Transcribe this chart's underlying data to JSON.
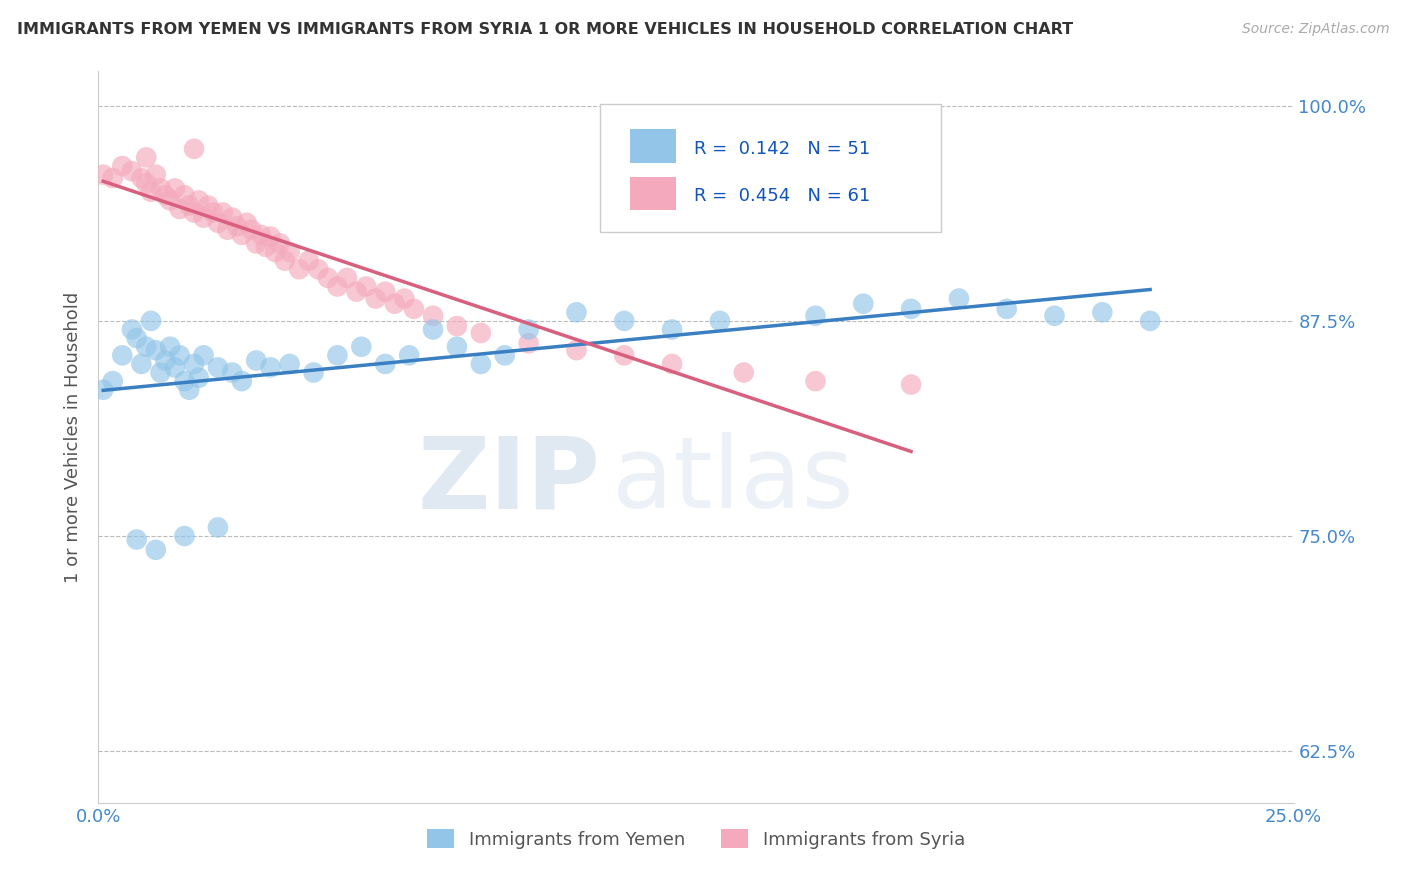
{
  "title": "IMMIGRANTS FROM YEMEN VS IMMIGRANTS FROM SYRIA 1 OR MORE VEHICLES IN HOUSEHOLD CORRELATION CHART",
  "source_text": "Source: ZipAtlas.com",
  "ylabel": "1 or more Vehicles in Household",
  "legend_label1": "Immigrants from Yemen",
  "legend_label2": "Immigrants from Syria",
  "R_yemen": 0.142,
  "N_yemen": 51,
  "R_syria": 0.454,
  "N_syria": 61,
  "xlim": [
    0.0,
    0.25
  ],
  "ylim": [
    0.595,
    1.02
  ],
  "yticks": [
    0.625,
    0.75,
    0.875,
    1.0
  ],
  "yticklabels": [
    "62.5%",
    "75.0%",
    "87.5%",
    "100.0%"
  ],
  "xticks": [
    0.0,
    0.05,
    0.1,
    0.15,
    0.2,
    0.25
  ],
  "xticklabels": [
    "0.0%",
    "",
    "",
    "",
    "",
    "25.0%"
  ],
  "color_yemen": "#92C5E8",
  "color_syria": "#F4AABC",
  "line_color_yemen": "#3A7FC1",
  "line_color_syria": "#D95F7F",
  "background_color": "#FFFFFF",
  "watermark_zip": "ZIP",
  "watermark_atlas": "atlas",
  "yemen_x": [
    0.001,
    0.003,
    0.005,
    0.007,
    0.008,
    0.009,
    0.01,
    0.011,
    0.012,
    0.013,
    0.014,
    0.015,
    0.016,
    0.017,
    0.018,
    0.019,
    0.02,
    0.021,
    0.022,
    0.025,
    0.028,
    0.03,
    0.033,
    0.036,
    0.04,
    0.045,
    0.05,
    0.055,
    0.06,
    0.065,
    0.07,
    0.075,
    0.08,
    0.085,
    0.09,
    0.1,
    0.11,
    0.12,
    0.13,
    0.15,
    0.16,
    0.17,
    0.18,
    0.19,
    0.2,
    0.21,
    0.22,
    0.008,
    0.012,
    0.018,
    0.025
  ],
  "yemen_y": [
    0.835,
    0.84,
    0.855,
    0.87,
    0.865,
    0.85,
    0.86,
    0.875,
    0.858,
    0.845,
    0.852,
    0.86,
    0.848,
    0.855,
    0.84,
    0.835,
    0.85,
    0.842,
    0.855,
    0.848,
    0.845,
    0.84,
    0.852,
    0.848,
    0.85,
    0.845,
    0.855,
    0.86,
    0.85,
    0.855,
    0.87,
    0.86,
    0.85,
    0.855,
    0.87,
    0.88,
    0.875,
    0.87,
    0.875,
    0.878,
    0.885,
    0.882,
    0.888,
    0.882,
    0.878,
    0.88,
    0.875,
    0.748,
    0.742,
    0.75,
    0.755
  ],
  "syria_x": [
    0.001,
    0.003,
    0.005,
    0.007,
    0.009,
    0.01,
    0.011,
    0.012,
    0.013,
    0.014,
    0.015,
    0.016,
    0.017,
    0.018,
    0.019,
    0.02,
    0.021,
    0.022,
    0.023,
    0.024,
    0.025,
    0.026,
    0.027,
    0.028,
    0.029,
    0.03,
    0.031,
    0.032,
    0.033,
    0.034,
    0.035,
    0.036,
    0.037,
    0.038,
    0.039,
    0.04,
    0.042,
    0.044,
    0.046,
    0.048,
    0.05,
    0.052,
    0.054,
    0.056,
    0.058,
    0.06,
    0.062,
    0.064,
    0.066,
    0.07,
    0.075,
    0.08,
    0.09,
    0.1,
    0.11,
    0.12,
    0.135,
    0.15,
    0.17,
    0.01,
    0.02
  ],
  "syria_y": [
    0.96,
    0.958,
    0.965,
    0.962,
    0.958,
    0.955,
    0.95,
    0.96,
    0.952,
    0.948,
    0.945,
    0.952,
    0.94,
    0.948,
    0.942,
    0.938,
    0.945,
    0.935,
    0.942,
    0.938,
    0.932,
    0.938,
    0.928,
    0.935,
    0.93,
    0.925,
    0.932,
    0.928,
    0.92,
    0.925,
    0.918,
    0.924,
    0.915,
    0.92,
    0.91,
    0.915,
    0.905,
    0.91,
    0.905,
    0.9,
    0.895,
    0.9,
    0.892,
    0.895,
    0.888,
    0.892,
    0.885,
    0.888,
    0.882,
    0.878,
    0.872,
    0.868,
    0.862,
    0.858,
    0.855,
    0.85,
    0.845,
    0.84,
    0.838,
    0.97,
    0.975
  ]
}
